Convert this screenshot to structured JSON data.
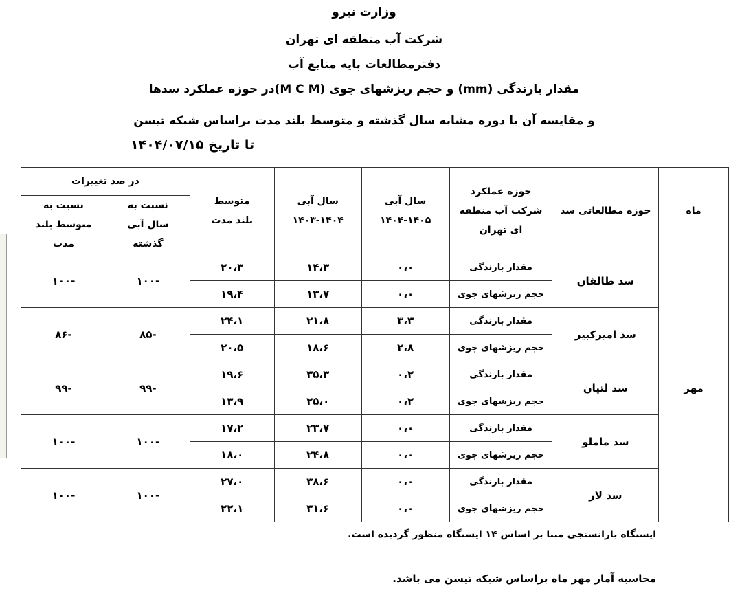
{
  "header": {
    "lines": [
      "وزارت نیرو",
      "شرکت آب منطقه ای تهران",
      "دفترمطالعات پایه منابع آب",
      "مقدار بارندگی (mm) و حجم ریزشهای جوی (M C M)در حوزه عملکرد سدها",
      "و مقایسه آن با دوره  مشابه سال گذشته  و متوسط بلند مدت  براساس شبکه تیسن"
    ],
    "date": "تا تاریخ  ۱۴۰۴/۰۷/۱۵"
  },
  "table": {
    "headers": {
      "month": "ماه",
      "dam": "حوزه مطالعاتی سد",
      "area": "حوزه عملکرد شرکت آب منطقه ای تهران",
      "y1405": "سال آبی ۱۴۰۵-۱۴۰۴",
      "y1404": "سال آبی ۱۴۰۴-۱۴۰۳",
      "avg": "متوسط بلند مدت",
      "pct": "در صد تغییرات",
      "vs_last": "نسبت به سال آبی گذشته",
      "vs_avg": "نسبت به متوسط بلند مدت"
    },
    "month": "مهر",
    "params": [
      "مقدار بارندگی",
      "حجم ریزشهای جوی"
    ],
    "dams": [
      {
        "name": "سد طالقان",
        "rows": [
          [
            "۰،۰",
            "۱۴،۳",
            "۲۰،۳"
          ],
          [
            "۰،۰",
            "۱۳،۷",
            "۱۹،۴"
          ]
        ],
        "vs_last": "-۱۰۰",
        "vs_avg": "-۱۰۰"
      },
      {
        "name": "سد امیرکبیر",
        "rows": [
          [
            "۳،۳",
            "۲۱،۸",
            "۲۴،۱"
          ],
          [
            "۲،۸",
            "۱۸،۶",
            "۲۰،۵"
          ]
        ],
        "vs_last": "-۸۵",
        "vs_avg": "-۸۶"
      },
      {
        "name": "سد لتیان",
        "rows": [
          [
            "۰،۲",
            "۳۵،۳",
            "۱۹،۶"
          ],
          [
            "۰،۲",
            "۲۵،۰",
            "۱۳،۹"
          ]
        ],
        "vs_last": "-۹۹",
        "vs_avg": "-۹۹"
      },
      {
        "name": "سد ماملو",
        "rows": [
          [
            "۰،۰",
            "۲۳،۷",
            "۱۷،۲"
          ],
          [
            "۰،۰",
            "۲۴،۸",
            "۱۸،۰"
          ]
        ],
        "vs_last": "-۱۰۰",
        "vs_avg": "-۱۰۰"
      },
      {
        "name": "سد لار",
        "rows": [
          [
            "۰،۰",
            "۳۸،۶",
            "۲۷،۰"
          ],
          [
            "۰،۰",
            "۳۱،۶",
            "۲۲،۱"
          ]
        ],
        "vs_last": "-۱۰۰",
        "vs_avg": "-۱۰۰"
      }
    ]
  },
  "notes": [
    "ایستگاه بارانسنجی مبنا بر اساس ۱۴ ایستگاه منظور گردیده است.",
    "محاسبه آمار مهر ماه براساس  شبکه تیسن می باشد."
  ]
}
